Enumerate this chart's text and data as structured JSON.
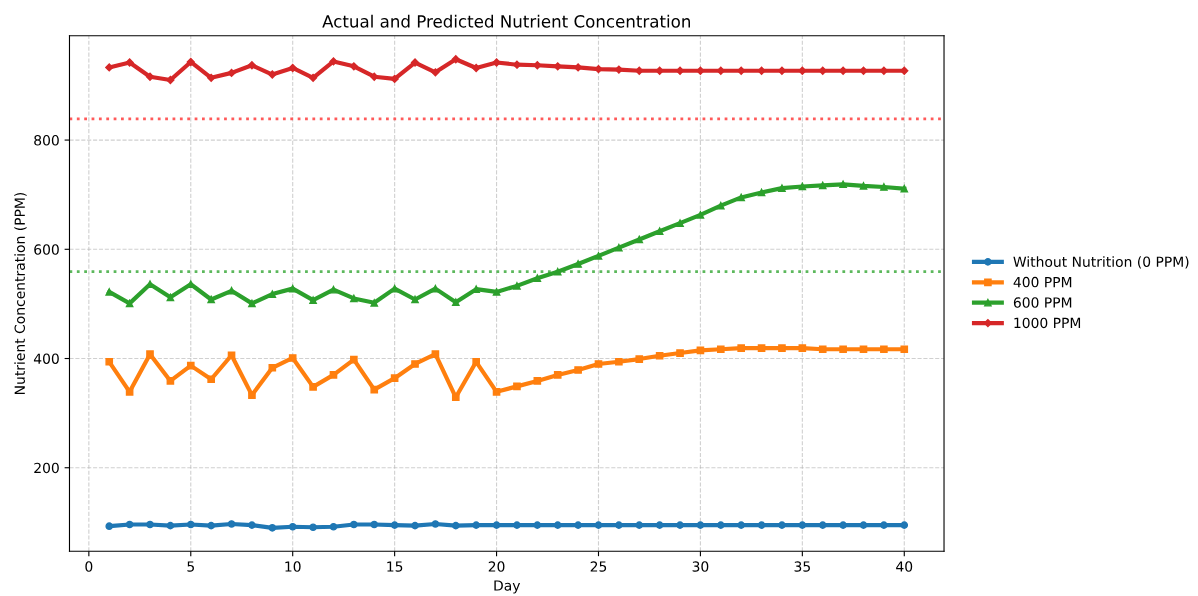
{
  "chart_data": {
    "type": "line",
    "title": "Actual and Predicted Nutrient Concentration",
    "xlabel": "Day",
    "ylabel": "Nutrient Concentration (PPM)",
    "x": [
      1,
      2,
      3,
      4,
      5,
      6,
      7,
      8,
      9,
      10,
      11,
      12,
      13,
      14,
      15,
      16,
      17,
      18,
      19,
      20,
      21,
      22,
      23,
      24,
      25,
      26,
      27,
      28,
      29,
      30,
      31,
      32,
      33,
      34,
      35,
      36,
      37,
      38,
      39,
      40
    ],
    "series": [
      {
        "name": "Without Nutrition (0 PPM)",
        "color": "#1f77b4",
        "marker": "circle",
        "values": [
          93,
          96,
          96,
          94,
          96,
          94,
          97,
          95,
          90,
          92,
          91,
          92,
          96,
          96,
          95,
          94,
          97,
          94,
          95,
          95,
          95,
          95,
          95,
          95,
          95,
          95,
          95,
          95,
          95,
          95,
          95,
          95,
          95,
          95,
          95,
          95,
          95,
          95,
          95,
          95
        ]
      },
      {
        "name": "400 PPM",
        "color": "#ff7f0e",
        "marker": "square",
        "values": [
          394,
          339,
          408,
          359,
          387,
          362,
          406,
          333,
          383,
          401,
          348,
          370,
          398,
          343,
          364,
          390,
          408,
          329,
          394,
          339,
          349,
          359,
          370,
          379,
          390,
          394,
          399,
          405,
          410,
          415,
          417,
          419,
          419,
          419,
          419,
          417,
          417,
          417,
          417,
          417
        ]
      },
      {
        "name": "600 PPM",
        "color": "#2ca02c",
        "marker": "triangle",
        "values": [
          522,
          501,
          536,
          512,
          536,
          508,
          524,
          501,
          518,
          528,
          507,
          526,
          510,
          502,
          528,
          508,
          528,
          503,
          527,
          522,
          533,
          547,
          559,
          573,
          588,
          603,
          618,
          633,
          648,
          663,
          680,
          695,
          704,
          712,
          715,
          717,
          719,
          716,
          714,
          711
        ]
      },
      {
        "name": "1000 PPM",
        "color": "#d62728",
        "marker": "diamond",
        "values": [
          933,
          942,
          916,
          910,
          943,
          914,
          923,
          937,
          920,
          932,
          914,
          944,
          935,
          916,
          912,
          942,
          924,
          948,
          932,
          942,
          938,
          937,
          935,
          933,
          930,
          929,
          927,
          927,
          927,
          927,
          927,
          927,
          927,
          927,
          927,
          927,
          927,
          927,
          927,
          927
        ]
      }
    ],
    "ref_lines": [
      {
        "axis": "y",
        "value": 839,
        "color": "#ff5a5a",
        "line_style": "dotted"
      },
      {
        "axis": "y",
        "value": 559,
        "color": "#5cb85c",
        "line_style": "dotted"
      }
    ],
    "xlim": [
      -0.95,
      41.95
    ],
    "ylim": [
      47,
      991
    ],
    "xticks": [
      0,
      5,
      10,
      15,
      20,
      25,
      30,
      35,
      40
    ],
    "yticks": [
      200,
      400,
      600,
      800
    ],
    "grid": true,
    "legend": "right",
    "line_style": "solid"
  }
}
